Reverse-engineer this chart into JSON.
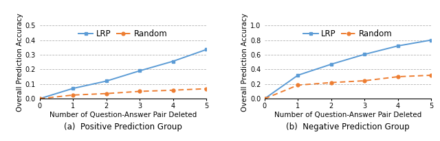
{
  "left": {
    "title": "(a)  Positive Prediction Group",
    "xlabel": "Number of Question-Answer Pair Deleted",
    "ylabel": "Overall Prediction Accuracy",
    "x": [
      0,
      1,
      2,
      3,
      4,
      5
    ],
    "lrp_y": [
      0.0,
      0.07,
      0.12,
      0.19,
      0.255,
      0.335
    ],
    "random_y": [
      0.0,
      0.025,
      0.035,
      0.05,
      0.058,
      0.068
    ],
    "ylim": [
      0,
      0.5
    ],
    "yticks": [
      0.0,
      0.1,
      0.2,
      0.3,
      0.4,
      0.5
    ]
  },
  "right": {
    "title": "(b)  Negative Prediction Group",
    "xlabel": "Number of Question-Answer Pair Deleted",
    "ylabel": "Overall Prediction Accuracy",
    "x": [
      0,
      1,
      2,
      3,
      4,
      5
    ],
    "lrp_y": [
      0.0,
      0.32,
      0.47,
      0.605,
      0.72,
      0.8
    ],
    "random_y": [
      0.0,
      0.185,
      0.22,
      0.245,
      0.3,
      0.32
    ],
    "ylim": [
      0,
      1.0
    ],
    "yticks": [
      0.0,
      0.2,
      0.4,
      0.6,
      0.8,
      1.0
    ]
  },
  "lrp_color": "#5B9BD5",
  "random_color": "#ED7D31",
  "lrp_label": "LRP",
  "random_label": "Random",
  "grid_color": "#AAAAAA",
  "title_fontsize": 8.5,
  "label_fontsize": 7.5,
  "tick_fontsize": 7,
  "legend_fontsize": 8.5
}
